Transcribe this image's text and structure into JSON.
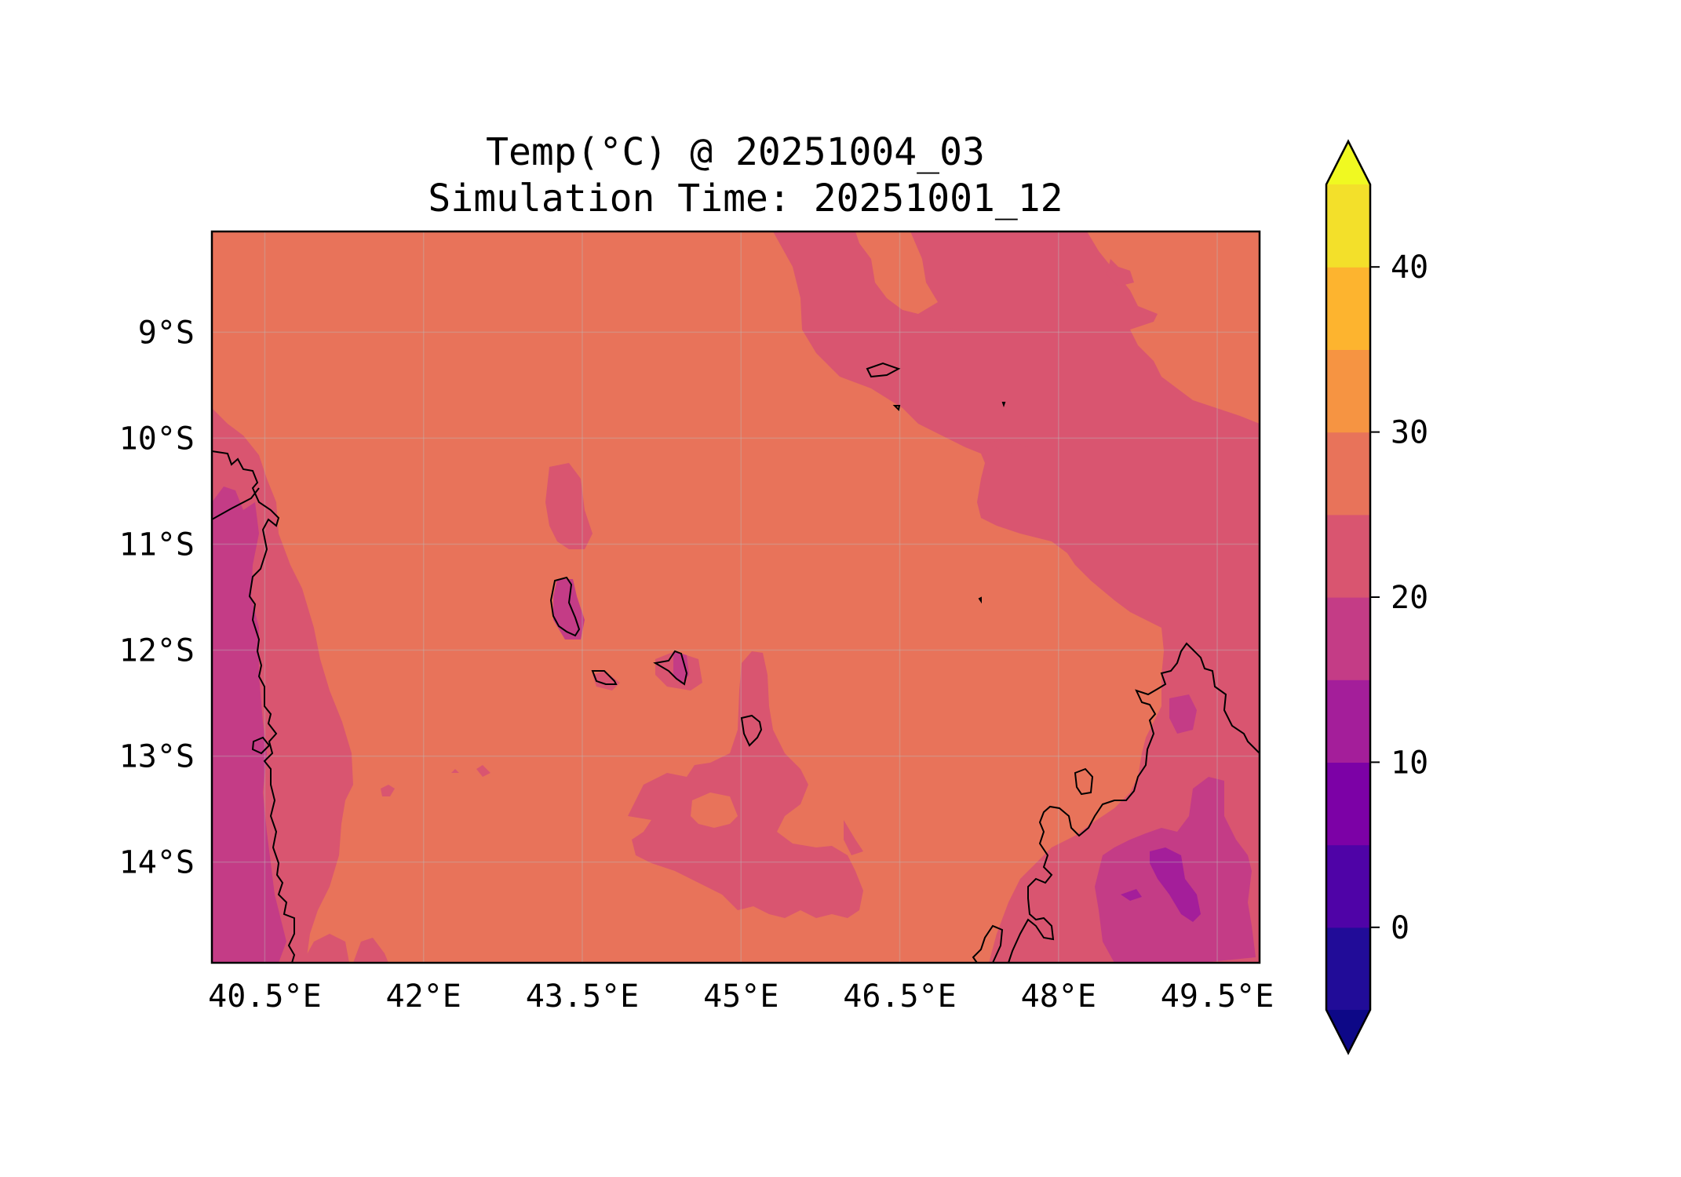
{
  "title": {
    "line1": "Temp(°C) @ 20251004_03",
    "line2": "Simulation Time: 20251001_12"
  },
  "map": {
    "extent": {
      "lon_min": 40.0,
      "lon_max": 49.9,
      "lat_min": -14.95,
      "lat_max": -8.05
    },
    "x_ticks": [
      {
        "lon": 40.5,
        "label": "40.5°E"
      },
      {
        "lon": 42.0,
        "label": "42°E"
      },
      {
        "lon": 43.5,
        "label": "43.5°E"
      },
      {
        "lon": 45.0,
        "label": "45°E"
      },
      {
        "lon": 46.5,
        "label": "46.5°E"
      },
      {
        "lon": 48.0,
        "label": "48°E"
      },
      {
        "lon": 49.5,
        "label": "49.5°E"
      }
    ],
    "y_ticks": [
      {
        "lat": -9,
        "label": "9°S"
      },
      {
        "lat": -10,
        "label": "10°S"
      },
      {
        "lat": -11,
        "label": "11°S"
      },
      {
        "lat": -12,
        "label": "12°S"
      },
      {
        "lat": -13,
        "label": "13°S"
      },
      {
        "lat": -14,
        "label": "14°S"
      }
    ],
    "gridlines": true,
    "background_band": {
      "range": [
        25,
        30
      ],
      "color": "#e8735a"
    }
  },
  "colorbar": {
    "levels": [
      -5,
      0,
      5,
      10,
      15,
      20,
      25,
      30,
      35,
      40,
      45
    ],
    "colors": [
      "#210c98",
      "#4f03a7",
      "#7c01a6",
      "#a41e9a",
      "#c43c86",
      "#d95570",
      "#e8735a",
      "#f69442",
      "#fdb42f",
      "#f3e02a"
    ],
    "extend": "both",
    "under_color": "#0d0887",
    "over_color": "#f0f921",
    "ticks": [
      {
        "value": 0,
        "label": "0"
      },
      {
        "value": 10,
        "label": "10"
      },
      {
        "value": 20,
        "label": "20"
      },
      {
        "value": 30,
        "label": "30"
      },
      {
        "value": 40,
        "label": "40"
      }
    ]
  },
  "colors": {
    "band_20_25": "#d95570",
    "band_15_20": "#c43c86",
    "band_10_15": "#a41e9a",
    "coastline": "#000000"
  }
}
